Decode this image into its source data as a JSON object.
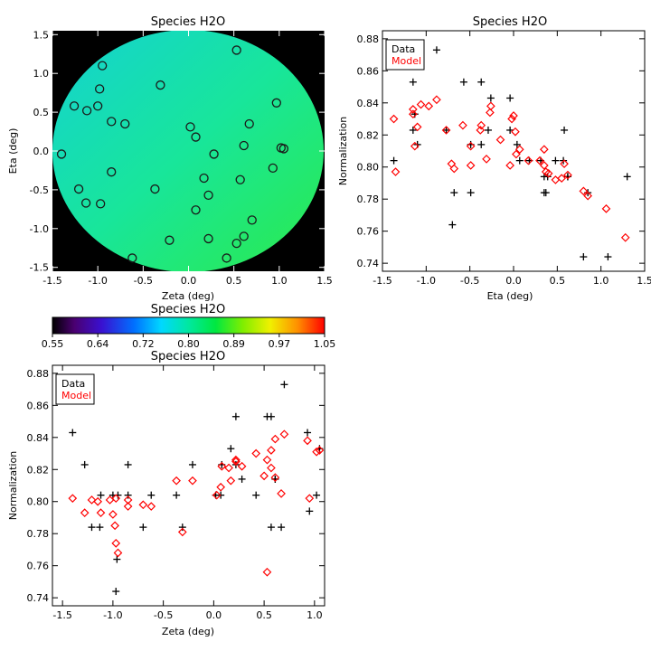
{
  "chart_data": [
    {
      "type": "heatmap",
      "title": "Species H2O",
      "xlabel": "Zeta (deg)",
      "ylabel": "Eta (deg)",
      "xlim": [
        -1.5,
        1.5
      ],
      "ylim": [
        -1.55,
        1.55
      ],
      "xticks": [
        "-1.5",
        "-1.0",
        "-0.5",
        "0.0",
        "0.5",
        "1.0",
        "1.5"
      ],
      "yticks": [
        "-1.5",
        "-1.0",
        "-0.5",
        "0.0",
        "0.5",
        "1.0",
        "1.5"
      ],
      "colormap": "rainbow",
      "background": "#000000",
      "field": {
        "shape": "circle",
        "center": [
          0,
          0
        ],
        "radius": 1.5,
        "min_value": 0.78,
        "max_value": 0.88,
        "gradient": "cyan at upper-left to green at lower-right"
      },
      "points": [
        [
          0.53,
          1.3
        ],
        [
          -0.95,
          1.1
        ],
        [
          -0.98,
          0.8
        ],
        [
          -0.31,
          0.85
        ],
        [
          -1.26,
          0.58
        ],
        [
          -1.12,
          0.52
        ],
        [
          -1.0,
          0.58
        ],
        [
          -0.85,
          0.38
        ],
        [
          -0.7,
          0.35
        ],
        [
          0.97,
          0.62
        ],
        [
          0.67,
          0.35
        ],
        [
          0.02,
          0.31
        ],
        [
          0.08,
          0.18
        ],
        [
          0.61,
          0.07
        ],
        [
          1.02,
          0.04
        ],
        [
          1.05,
          0.03
        ],
        [
          -1.4,
          -0.04
        ],
        [
          0.28,
          -0.04
        ],
        [
          0.93,
          -0.22
        ],
        [
          -0.85,
          -0.27
        ],
        [
          0.17,
          -0.35
        ],
        [
          0.57,
          -0.37
        ],
        [
          -1.21,
          -0.49
        ],
        [
          -0.37,
          -0.49
        ],
        [
          0.22,
          -0.57
        ],
        [
          -1.13,
          -0.67
        ],
        [
          -0.97,
          -0.68
        ],
        [
          0.08,
          -0.76
        ],
        [
          0.7,
          -0.89
        ],
        [
          -0.21,
          -1.15
        ],
        [
          0.22,
          -1.13
        ],
        [
          0.61,
          -1.1
        ],
        [
          0.53,
          -1.19
        ],
        [
          0.42,
          -1.38
        ],
        [
          -0.62,
          -1.38
        ]
      ]
    },
    {
      "type": "colorbar",
      "title": "Species H2O",
      "range": [
        0.55,
        1.05
      ],
      "ticks": [
        "0.55",
        "0.64",
        "0.72",
        "0.80",
        "0.89",
        "0.97",
        "1.05"
      ],
      "colormap": "rainbow"
    },
    {
      "type": "scatter",
      "title": "Species H2O",
      "xlabel": "Eta (deg)",
      "ylabel": "Normalization",
      "xlim": [
        -1.5,
        1.5
      ],
      "ylim": [
        0.735,
        0.885
      ],
      "xticks": [
        "-1.5",
        "-1.0",
        "-0.5",
        "0.0",
        "0.5",
        "1.0",
        "1.5"
      ],
      "yticks": [
        "0.74",
        "0.76",
        "0.78",
        "0.80",
        "0.82",
        "0.84",
        "0.86",
        "0.88"
      ],
      "legend": "top-left",
      "series": [
        {
          "name": "Data",
          "color": "#000000",
          "marker": "plus",
          "points": [
            [
              -1.37,
              0.804
            ],
            [
              -1.15,
              0.853
            ],
            [
              -1.13,
              0.833
            ],
            [
              -1.1,
              0.814
            ],
            [
              -1.15,
              0.823
            ],
            [
              -0.88,
              0.873
            ],
            [
              -0.77,
              0.823
            ],
            [
              -0.7,
              0.764
            ],
            [
              -0.68,
              0.784
            ],
            [
              -0.57,
              0.853
            ],
            [
              -0.49,
              0.814
            ],
            [
              -0.49,
              0.784
            ],
            [
              -0.37,
              0.814
            ],
            [
              -0.37,
              0.853
            ],
            [
              -0.26,
              0.843
            ],
            [
              -0.29,
              0.823
            ],
            [
              -0.04,
              0.843
            ],
            [
              -0.04,
              0.823
            ],
            [
              0.04,
              0.814
            ],
            [
              0.07,
              0.804
            ],
            [
              0.18,
              0.804
            ],
            [
              0.31,
              0.804
            ],
            [
              0.35,
              0.784
            ],
            [
              0.37,
              0.784
            ],
            [
              0.35,
              0.794
            ],
            [
              0.39,
              0.794
            ],
            [
              0.48,
              0.804
            ],
            [
              0.57,
              0.804
            ],
            [
              0.58,
              0.823
            ],
            [
              0.62,
              0.794
            ],
            [
              0.62,
              0.794
            ],
            [
              0.8,
              0.744
            ],
            [
              0.85,
              0.784
            ],
            [
              1.08,
              0.744
            ],
            [
              1.3,
              0.794
            ]
          ]
        },
        {
          "name": "Model",
          "color": "#ff0000",
          "marker": "diamond",
          "points": [
            [
              -1.37,
              0.83
            ],
            [
              -1.35,
              0.797
            ],
            [
              -1.15,
              0.833
            ],
            [
              -1.15,
              0.836
            ],
            [
              -1.13,
              0.813
            ],
            [
              -1.1,
              0.825
            ],
            [
              -1.06,
              0.839
            ],
            [
              -0.97,
              0.838
            ],
            [
              -0.88,
              0.842
            ],
            [
              -0.77,
              0.823
            ],
            [
              -0.71,
              0.802
            ],
            [
              -0.68,
              0.799
            ],
            [
              -0.58,
              0.826
            ],
            [
              -0.49,
              0.813
            ],
            [
              -0.49,
              0.801
            ],
            [
              -0.37,
              0.826
            ],
            [
              -0.38,
              0.823
            ],
            [
              -0.31,
              0.805
            ],
            [
              -0.27,
              0.834
            ],
            [
              -0.26,
              0.838
            ],
            [
              -0.15,
              0.817
            ],
            [
              -0.04,
              0.801
            ],
            [
              -0.02,
              0.83
            ],
            [
              0.0,
              0.832
            ],
            [
              0.02,
              0.822
            ],
            [
              0.03,
              0.808
            ],
            [
              0.07,
              0.811
            ],
            [
              0.17,
              0.804
            ],
            [
              0.3,
              0.804
            ],
            [
              0.35,
              0.811
            ],
            [
              0.35,
              0.801
            ],
            [
              0.37,
              0.797
            ],
            [
              0.4,
              0.796
            ],
            [
              0.48,
              0.792
            ],
            [
              0.55,
              0.793
            ],
            [
              0.58,
              0.802
            ],
            [
              0.62,
              0.795
            ],
            [
              0.8,
              0.785
            ],
            [
              0.85,
              0.782
            ],
            [
              1.06,
              0.774
            ],
            [
              1.28,
              0.756
            ]
          ]
        }
      ]
    },
    {
      "type": "scatter",
      "title": "Species H2O",
      "xlabel": "Zeta (deg)",
      "ylabel": "Normalization",
      "xlim": [
        -1.6,
        1.1
      ],
      "ylim": [
        0.735,
        0.885
      ],
      "xticks": [
        "-1.5",
        "-1.0",
        "-0.5",
        "0.0",
        "0.5",
        "1.0"
      ],
      "yticks": [
        "0.74",
        "0.76",
        "0.78",
        "0.80",
        "0.82",
        "0.84",
        "0.86",
        "0.88"
      ],
      "legend": "top-left",
      "series": [
        {
          "name": "Data",
          "color": "#000000",
          "marker": "plus",
          "points": [
            [
              -1.4,
              0.843
            ],
            [
              -1.28,
              0.823
            ],
            [
              -1.21,
              0.784
            ],
            [
              -1.13,
              0.784
            ],
            [
              -1.12,
              0.804
            ],
            [
              -1.0,
              0.804
            ],
            [
              -0.97,
              0.744
            ],
            [
              -0.96,
              0.764
            ],
            [
              -0.95,
              0.804
            ],
            [
              -0.85,
              0.804
            ],
            [
              -0.85,
              0.823
            ],
            [
              -0.7,
              0.784
            ],
            [
              -0.62,
              0.804
            ],
            [
              -0.37,
              0.804
            ],
            [
              -0.31,
              0.784
            ],
            [
              -0.21,
              0.823
            ],
            [
              0.02,
              0.804
            ],
            [
              0.07,
              0.804
            ],
            [
              0.08,
              0.823
            ],
            [
              0.17,
              0.833
            ],
            [
              0.22,
              0.853
            ],
            [
              0.22,
              0.823
            ],
            [
              0.28,
              0.814
            ],
            [
              0.42,
              0.804
            ],
            [
              0.53,
              0.853
            ],
            [
              0.57,
              0.853
            ],
            [
              0.57,
              0.784
            ],
            [
              0.61,
              0.814
            ],
            [
              0.67,
              0.784
            ],
            [
              0.7,
              0.873
            ],
            [
              0.93,
              0.843
            ],
            [
              0.95,
              0.794
            ],
            [
              1.02,
              0.804
            ],
            [
              1.05,
              0.833
            ],
            [
              0.61,
              0.814
            ]
          ]
        },
        {
          "name": "Model",
          "color": "#ff0000",
          "marker": "diamond",
          "points": [
            [
              -1.4,
              0.802
            ],
            [
              -1.28,
              0.793
            ],
            [
              -1.21,
              0.801
            ],
            [
              -1.15,
              0.8
            ],
            [
              -1.12,
              0.793
            ],
            [
              -1.03,
              0.801
            ],
            [
              -1.0,
              0.792
            ],
            [
              -0.98,
              0.785
            ],
            [
              -0.97,
              0.774
            ],
            [
              -0.95,
              0.768
            ],
            [
              -0.97,
              0.802
            ],
            [
              -0.85,
              0.797
            ],
            [
              -0.85,
              0.801
            ],
            [
              -0.7,
              0.798
            ],
            [
              -0.62,
              0.797
            ],
            [
              -0.37,
              0.813
            ],
            [
              -0.31,
              0.781
            ],
            [
              -0.21,
              0.813
            ],
            [
              0.03,
              0.804
            ],
            [
              0.07,
              0.809
            ],
            [
              0.08,
              0.822
            ],
            [
              0.15,
              0.821
            ],
            [
              0.17,
              0.813
            ],
            [
              0.22,
              0.826
            ],
            [
              0.22,
              0.825
            ],
            [
              0.28,
              0.822
            ],
            [
              0.42,
              0.83
            ],
            [
              0.5,
              0.816
            ],
            [
              0.53,
              0.756
            ],
            [
              0.53,
              0.826
            ],
            [
              0.57,
              0.821
            ],
            [
              0.57,
              0.832
            ],
            [
              0.61,
              0.839
            ],
            [
              0.67,
              0.805
            ],
            [
              0.61,
              0.815
            ],
            [
              0.7,
              0.842
            ],
            [
              0.93,
              0.838
            ],
            [
              0.95,
              0.802
            ],
            [
              1.02,
              0.831
            ],
            [
              1.05,
              0.832
            ]
          ]
        }
      ]
    }
  ]
}
